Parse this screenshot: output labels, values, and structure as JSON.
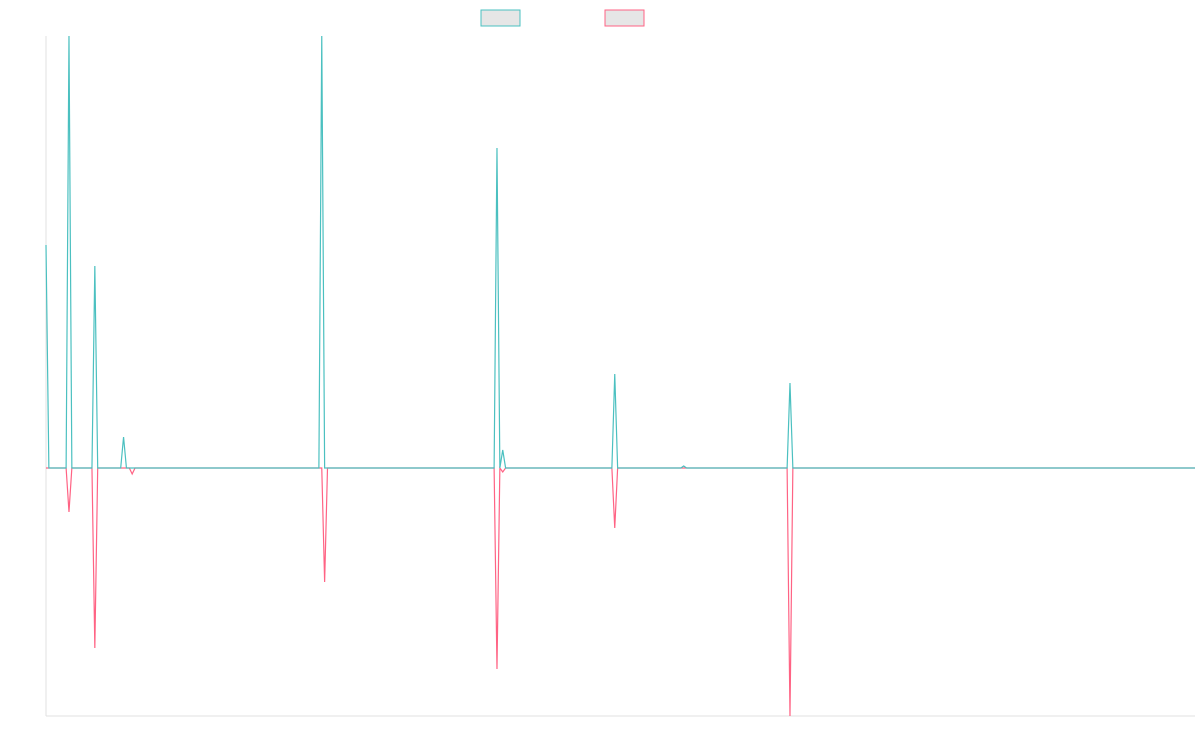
{
  "chart_data": {
    "type": "line",
    "x": [
      0,
      1,
      7,
      8,
      9,
      16,
      17,
      18,
      26,
      27,
      28,
      29,
      30,
      31,
      95,
      96,
      97,
      98,
      156,
      157,
      158,
      159,
      160,
      161,
      162,
      163,
      197,
      198,
      199,
      221,
      222,
      223,
      258,
      259,
      260,
      400
    ],
    "series": [
      {
        "color": "#4bc0c0",
        "values": [
          223,
          0,
          0,
          432,
          0,
          0,
          202,
          0,
          0,
          31,
          0,
          0,
          0,
          0,
          0,
          432,
          0,
          0,
          0,
          320,
          0,
          18,
          0,
          0,
          0,
          0,
          0,
          94,
          0,
          0,
          2,
          0,
          0,
          85,
          0,
          0
        ]
      },
      {
        "color": "#ff6384",
        "values": [
          0,
          0,
          0,
          -44,
          0,
          0,
          -180,
          0,
          0,
          0,
          0,
          0,
          -6,
          0,
          0,
          0,
          -114,
          0,
          0,
          -201,
          0,
          -4,
          0,
          0,
          0,
          0,
          0,
          -60,
          0,
          0,
          0,
          0,
          0,
          -248,
          0,
          0
        ]
      }
    ],
    "xlim": [
      0,
      400
    ],
    "ylim": [
      -248,
      432
    ],
    "grid": false
  }
}
